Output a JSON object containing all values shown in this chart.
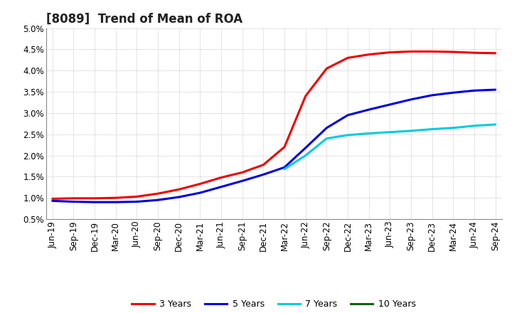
{
  "title": "[8089]  Trend of Mean of ROA",
  "ylim": [
    0.005,
    0.05
  ],
  "yticks": [
    0.005,
    0.01,
    0.015,
    0.02,
    0.025,
    0.03,
    0.035,
    0.04,
    0.045,
    0.05
  ],
  "x_labels": [
    "Jun-19",
    "Sep-19",
    "Dec-19",
    "Mar-20",
    "Jun-20",
    "Sep-20",
    "Dec-20",
    "Mar-21",
    "Jun-21",
    "Sep-21",
    "Dec-21",
    "Mar-22",
    "Jun-22",
    "Sep-22",
    "Dec-22",
    "Mar-23",
    "Jun-23",
    "Sep-23",
    "Dec-23",
    "Mar-24",
    "Jun-24",
    "Sep-24"
  ],
  "series_3y": {
    "color": "#ee0000",
    "label": "3 Years",
    "x": [
      0,
      1,
      2,
      3,
      4,
      5,
      6,
      7,
      8,
      9,
      10,
      11,
      12,
      13,
      14,
      15,
      16,
      17,
      18,
      19,
      20,
      21
    ],
    "y": [
      0.0098,
      0.0099,
      0.0099,
      0.01,
      0.0103,
      0.011,
      0.012,
      0.0133,
      0.0148,
      0.016,
      0.0178,
      0.022,
      0.034,
      0.0405,
      0.043,
      0.0438,
      0.0443,
      0.0445,
      0.0445,
      0.0444,
      0.0442,
      0.0441
    ]
  },
  "series_5y": {
    "color": "#0000dd",
    "label": "5 Years",
    "x": [
      0,
      1,
      2,
      3,
      4,
      5,
      6,
      7,
      8,
      9,
      10,
      11,
      12,
      13,
      14,
      15,
      16,
      17,
      18,
      19,
      20,
      21
    ],
    "y": [
      0.0093,
      0.0091,
      0.009,
      0.009,
      0.0091,
      0.0095,
      0.0102,
      0.0112,
      0.0126,
      0.014,
      0.0155,
      0.0172,
      0.0218,
      0.0265,
      0.0295,
      0.0308,
      0.032,
      0.0332,
      0.0342,
      0.0348,
      0.0353,
      0.0355
    ]
  },
  "series_7y": {
    "color": "#00ccdd",
    "label": "7 Years",
    "x": [
      11,
      12,
      13,
      14,
      15,
      16,
      17,
      18,
      19,
      20,
      21
    ],
    "y": [
      0.0168,
      0.02,
      0.024,
      0.0248,
      0.0252,
      0.0255,
      0.0258,
      0.0262,
      0.0265,
      0.027,
      0.0273
    ]
  },
  "series_10y": {
    "color": "#006600",
    "label": "10 Years",
    "x": [],
    "y": []
  },
  "bg_color": "#ffffff",
  "plot_bg_color": "#ffffff",
  "grid_color": "#999999",
  "line_width": 2.2,
  "title_fontsize": 12,
  "tick_fontsize": 8.5
}
